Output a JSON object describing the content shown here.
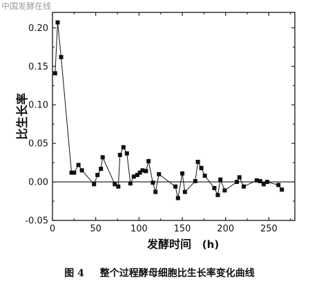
{
  "watermark": "中国发酵在线",
  "caption": {
    "figure_number": "图 4",
    "text": "整个过程酵母细胞比生长率变化曲线"
  },
  "chart_data": {
    "type": "line",
    "title": "",
    "xlabel": "发酵时间",
    "xlabel_unit": "(h)",
    "ylabel": "比生长率",
    "xlim": [
      0,
      280
    ],
    "ylim": [
      -0.05,
      0.22
    ],
    "x_ticks": [
      0,
      50,
      100,
      150,
      200,
      250
    ],
    "x_tick_labels": [
      "0",
      "50",
      "100",
      "150",
      "200",
      "250"
    ],
    "y_ticks": [
      -0.05,
      0.0,
      0.05,
      0.1,
      0.15,
      0.2
    ],
    "y_tick_labels": [
      "-0.05",
      "0.00",
      "0.05",
      "0.10",
      "0.15",
      "0.20"
    ],
    "reference_line_y": 0.0,
    "grid": false,
    "marker": "square",
    "series": [
      {
        "color": "#111111",
        "points": [
          {
            "x": 3,
            "y": 0.141
          },
          {
            "x": 6,
            "y": 0.207
          },
          {
            "x": 10,
            "y": 0.162
          },
          {
            "x": 22,
            "y": 0.012
          },
          {
            "x": 25,
            "y": 0.012
          },
          {
            "x": 30,
            "y": 0.022
          },
          {
            "x": 34,
            "y": 0.015
          },
          {
            "x": 48,
            "y": -0.003
          },
          {
            "x": 52,
            "y": 0.009
          },
          {
            "x": 56,
            "y": 0.017
          },
          {
            "x": 58,
            "y": 0.032
          },
          {
            "x": 72,
            "y": -0.003
          },
          {
            "x": 76,
            "y": -0.006
          },
          {
            "x": 78,
            "y": 0.035
          },
          {
            "x": 82,
            "y": 0.045
          },
          {
            "x": 86,
            "y": 0.037
          },
          {
            "x": 90,
            "y": -0.002
          },
          {
            "x": 94,
            "y": 0.007
          },
          {
            "x": 98,
            "y": 0.009
          },
          {
            "x": 101,
            "y": 0.012
          },
          {
            "x": 104,
            "y": 0.015
          },
          {
            "x": 108,
            "y": 0.014
          },
          {
            "x": 111,
            "y": 0.027
          },
          {
            "x": 116,
            "y": -0.001
          },
          {
            "x": 119,
            "y": -0.013
          },
          {
            "x": 123,
            "y": 0.01
          },
          {
            "x": 142,
            "y": -0.006
          },
          {
            "x": 145,
            "y": -0.021
          },
          {
            "x": 150,
            "y": 0.011
          },
          {
            "x": 153,
            "y": -0.013
          },
          {
            "x": 165,
            "y": 0.001
          },
          {
            "x": 168,
            "y": 0.026
          },
          {
            "x": 172,
            "y": 0.018
          },
          {
            "x": 176,
            "y": 0.008
          },
          {
            "x": 187,
            "y": -0.008
          },
          {
            "x": 191,
            "y": -0.017
          },
          {
            "x": 194,
            "y": 0.003
          },
          {
            "x": 199,
            "y": -0.011
          },
          {
            "x": 213,
            "y": 0.0
          },
          {
            "x": 216,
            "y": 0.006
          },
          {
            "x": 221,
            "y": -0.006
          },
          {
            "x": 236,
            "y": 0.002
          },
          {
            "x": 240,
            "y": 0.001
          },
          {
            "x": 244,
            "y": -0.003
          },
          {
            "x": 248,
            "y": 0.0
          },
          {
            "x": 261,
            "y": -0.004
          },
          {
            "x": 265,
            "y": -0.01
          }
        ]
      }
    ]
  }
}
